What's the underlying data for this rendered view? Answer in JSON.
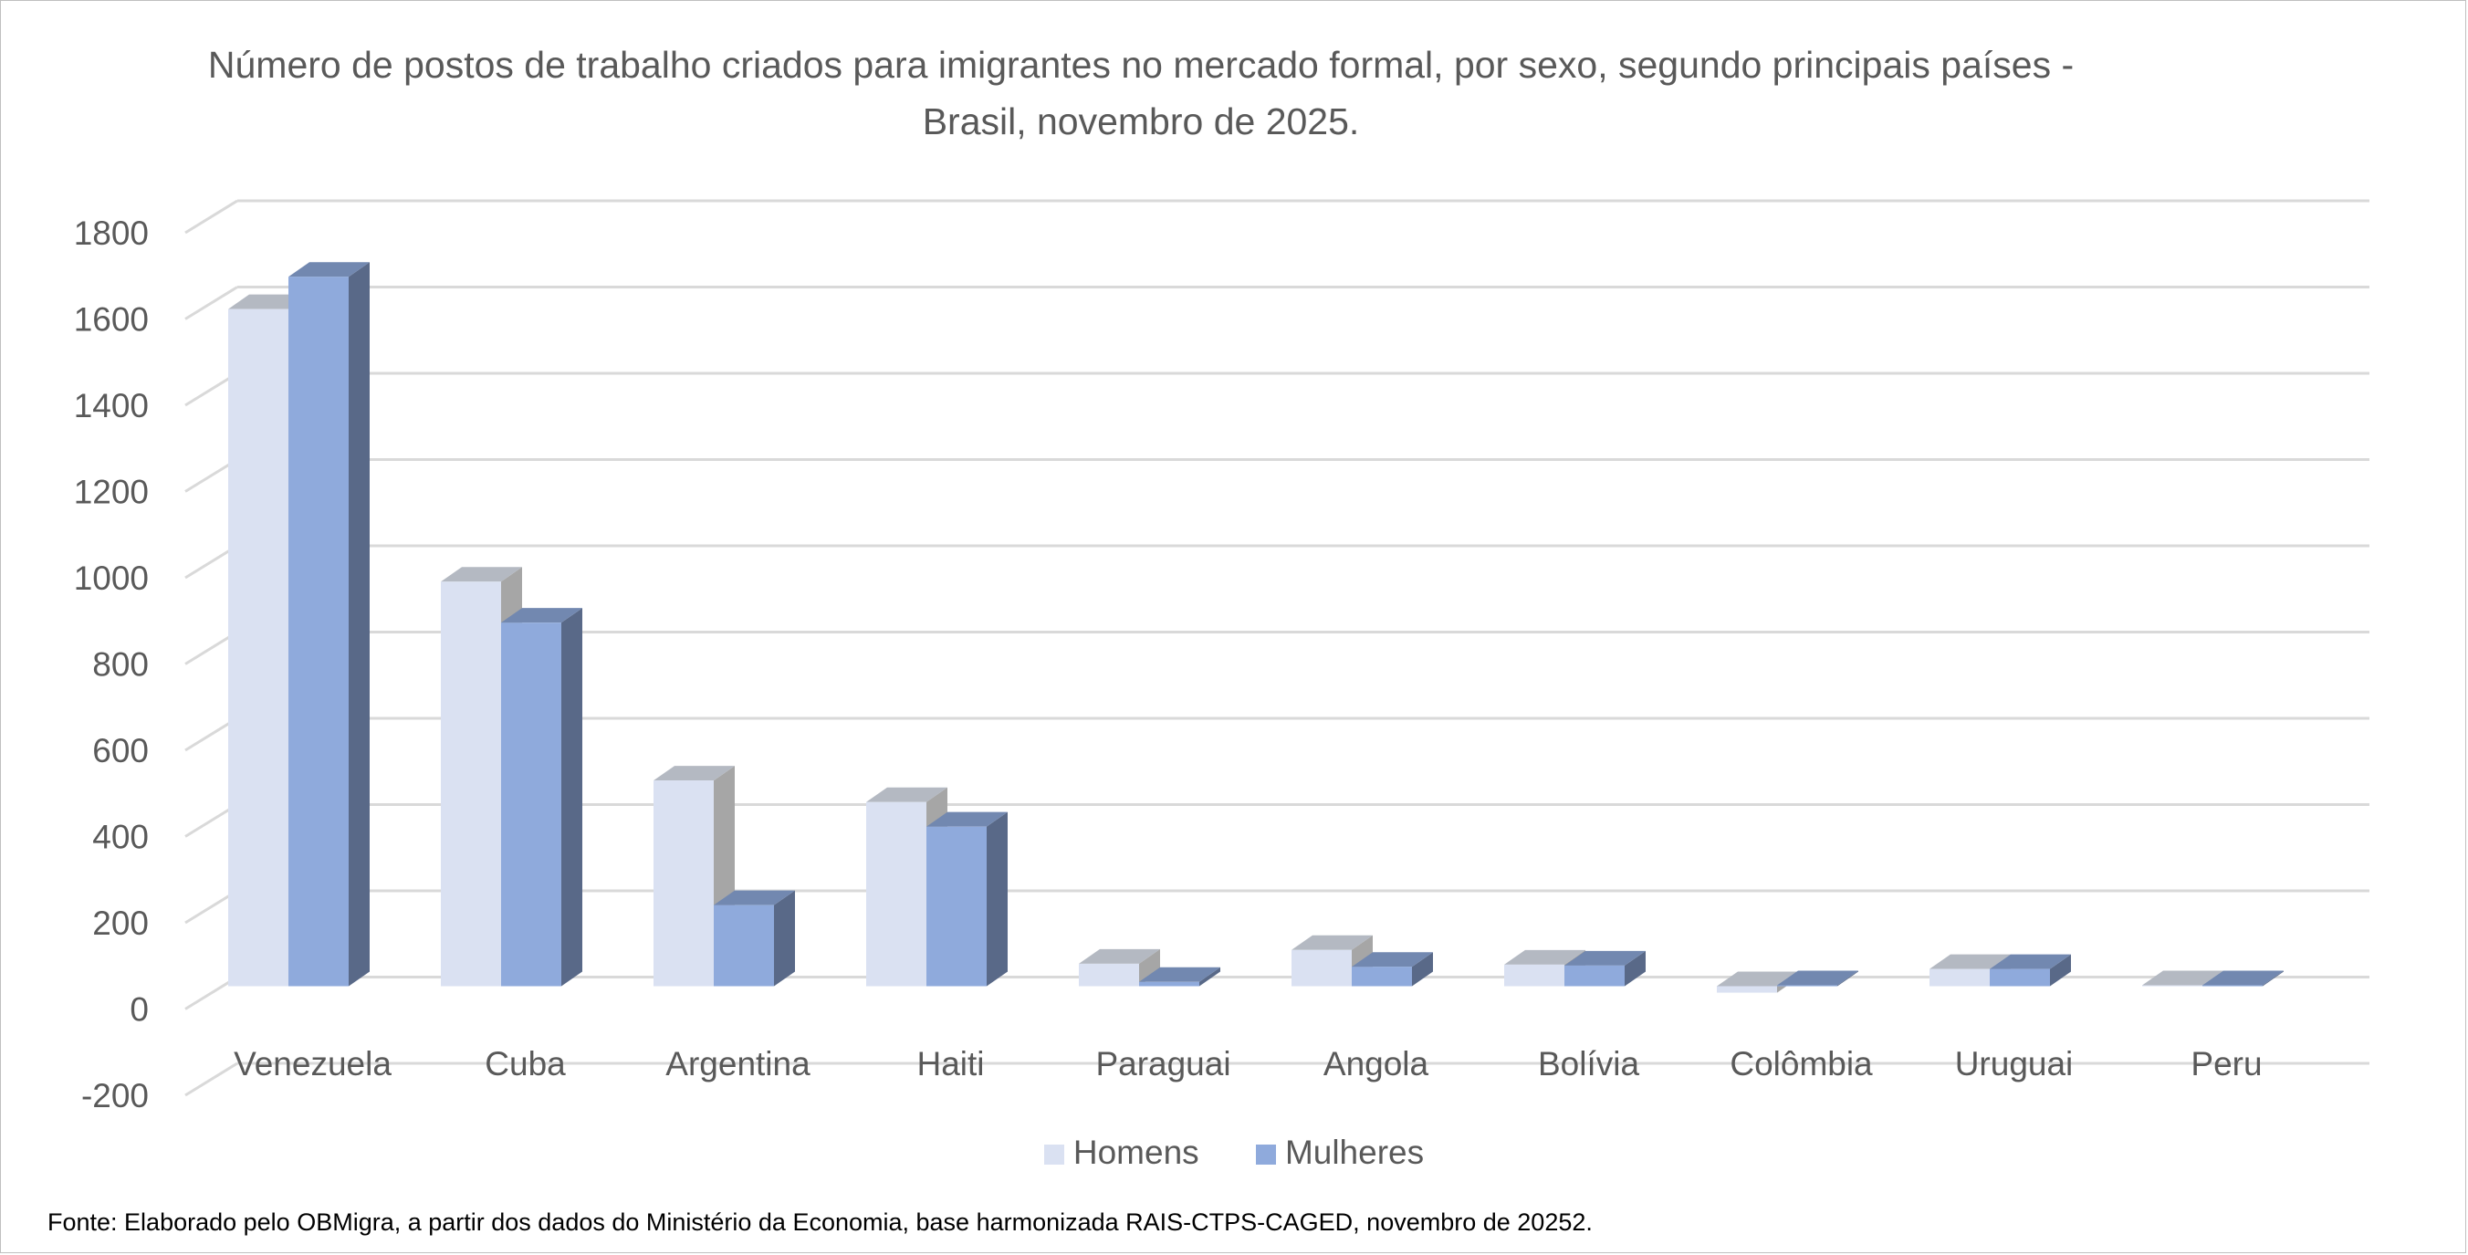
{
  "chart_data": {
    "type": "bar",
    "style": "3d-clustered-column",
    "title": "Número de postos de trabalho criados para imigrantes no mercado formal, por sexo, segundo principais países - Brasil, novembro de 2025.",
    "title_lines": [
      "Número de postos de trabalho criados para imigrantes no mercado formal, por sexo, segundo principais países -",
      "Brasil, novembro de 2025."
    ],
    "xlabel": "",
    "ylabel": "",
    "categories": [
      "Venezuela",
      "Cuba",
      "Argentina",
      "Haiti",
      "Paraguai",
      "Angola",
      "Bolívia",
      "Colômbia",
      "Uruguai",
      "Peru"
    ],
    "series": [
      {
        "name": "Homens",
        "color": "#dae1f2",
        "values": [
          1570,
          938,
          477,
          427,
          52,
          84,
          50,
          -15,
          40,
          2
        ]
      },
      {
        "name": "Mulheres",
        "color": "#8faadc",
        "values": [
          1645,
          843,
          188,
          370,
          10,
          45,
          48,
          2,
          40,
          2
        ]
      }
    ],
    "ylim": [
      -200,
      1800
    ],
    "yticks": [
      -200,
      0,
      200,
      400,
      600,
      800,
      1000,
      1200,
      1400,
      1600,
      1800
    ],
    "ytick_labels": [
      "-200",
      "0",
      "200",
      "400",
      "600",
      "800",
      "1000",
      "1200",
      "1400",
      "1600",
      "1800"
    ],
    "grid": true,
    "legend_position": "bottom"
  },
  "source_note": "Fonte: Elaborado pelo OBMigra,  a partir dos dados do Ministério da Economia, base harmonizada RAIS-CTPS-CAGED, novembro de 20252."
}
